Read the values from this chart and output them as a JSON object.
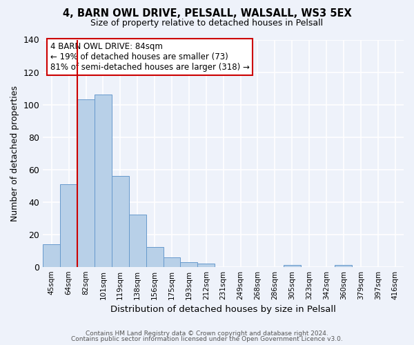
{
  "title": "4, BARN OWL DRIVE, PELSALL, WALSALL, WS3 5EX",
  "subtitle": "Size of property relative to detached houses in Pelsall",
  "xlabel": "Distribution of detached houses by size in Pelsall",
  "ylabel": "Number of detached properties",
  "bin_labels": [
    "45sqm",
    "64sqm",
    "82sqm",
    "101sqm",
    "119sqm",
    "138sqm",
    "156sqm",
    "175sqm",
    "193sqm",
    "212sqm",
    "231sqm",
    "249sqm",
    "268sqm",
    "286sqm",
    "305sqm",
    "323sqm",
    "342sqm",
    "360sqm",
    "379sqm",
    "397sqm",
    "416sqm"
  ],
  "bin_values": [
    14,
    51,
    103,
    106,
    56,
    32,
    12,
    6,
    3,
    2,
    0,
    0,
    0,
    0,
    1,
    0,
    0,
    1,
    0,
    0,
    0
  ],
  "bar_color": "#b8d0e8",
  "bar_edge_color": "#6699cc",
  "property_line_label": "4 BARN OWL DRIVE: 84sqm",
  "annotation_line1": "← 19% of detached houses are smaller (73)",
  "annotation_line2": "81% of semi-detached houses are larger (318) →",
  "vline_color": "#cc0000",
  "ylim": [
    0,
    140
  ],
  "yticks": [
    0,
    20,
    40,
    60,
    80,
    100,
    120,
    140
  ],
  "footnote1": "Contains HM Land Registry data © Crown copyright and database right 2024.",
  "footnote2": "Contains public sector information licensed under the Open Government Licence v3.0.",
  "background_color": "#eef2fa"
}
